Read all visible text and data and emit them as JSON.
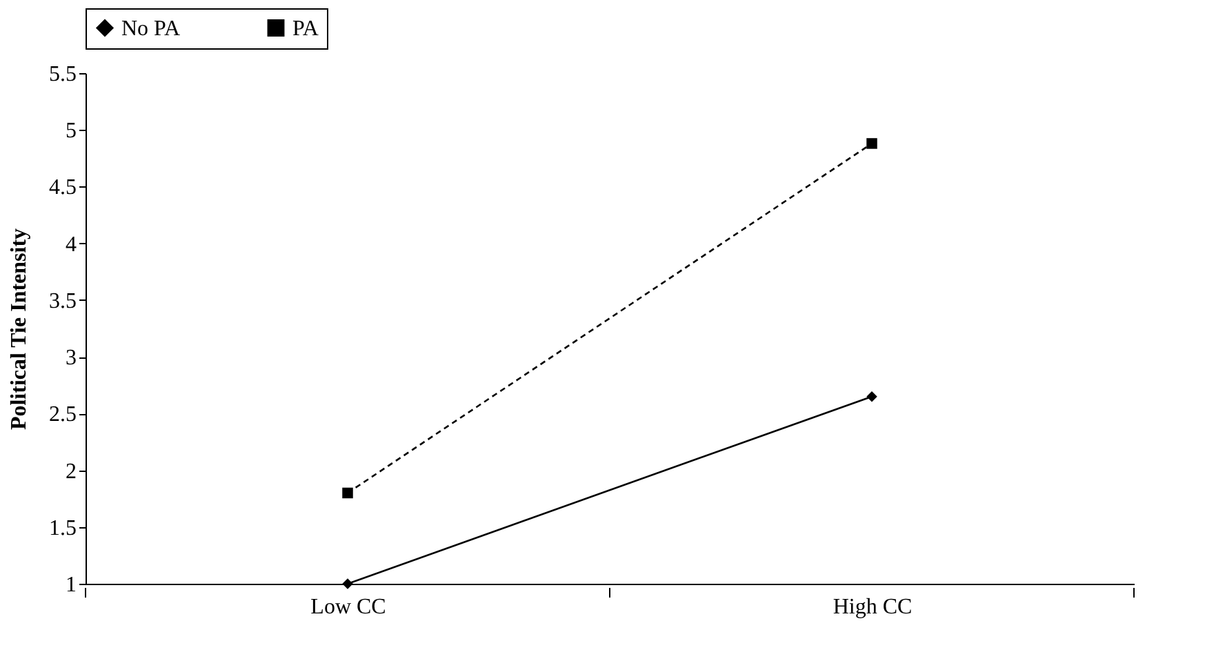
{
  "chart_data": {
    "type": "line",
    "ylabel": "Political Tie Intensity",
    "categories": [
      "Low CC",
      "High CC"
    ],
    "series": [
      {
        "name": "No PA",
        "color": "#000000",
        "values": [
          1.0,
          2.65
        ],
        "marker": "diamond",
        "line_style": "solid"
      },
      {
        "name": "PA",
        "color": "#000000",
        "values": [
          1.8,
          4.88
        ],
        "marker": "square",
        "line_style": "dashed"
      }
    ],
    "ylim": [
      1,
      5.5
    ],
    "yticks": [
      1,
      1.5,
      2,
      2.5,
      3,
      3.5,
      4,
      4.5,
      5,
      5.5
    ],
    "grid": false,
    "legend": "top"
  }
}
